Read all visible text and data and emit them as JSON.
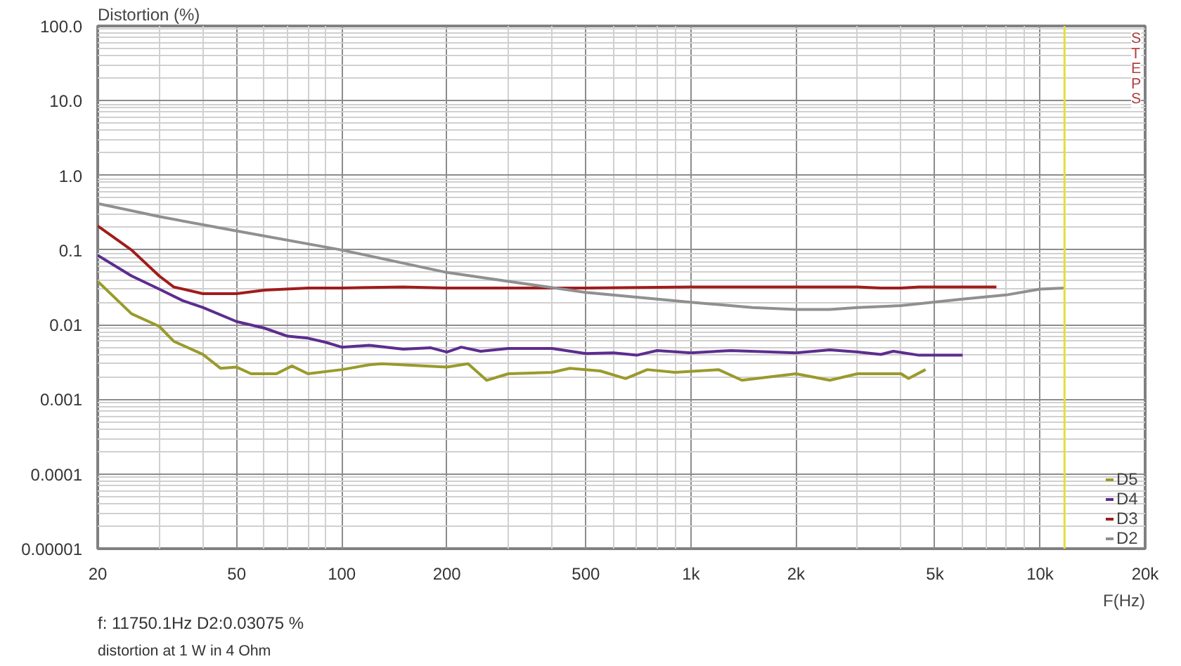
{
  "chart_data": {
    "type": "line",
    "ylabel": "Distortion (%)",
    "xlabel": "F(Hz)",
    "log": "xy",
    "grid": true,
    "legend": "bottom right",
    "line_style": "solid",
    "marker": "none",
    "xlim": [
      20,
      20000
    ],
    "ylim": [
      1e-05,
      100
    ],
    "xticks": [
      20,
      50,
      100,
      200,
      500,
      {
        "value": 1000,
        "label": "1k"
      },
      {
        "value": 2000,
        "label": "2k"
      },
      {
        "value": 5000,
        "label": "5k"
      },
      {
        "value": 10000,
        "label": "10k"
      },
      {
        "value": 20000,
        "label": "20k"
      }
    ],
    "yticks": [
      {
        "value": 1e-05,
        "label": "0.00001"
      },
      {
        "value": 0.0001,
        "label": "0.0001"
      },
      {
        "value": 0.001,
        "label": "0.001"
      },
      {
        "value": 0.01,
        "label": "0.01"
      },
      {
        "value": 0.1,
        "label": "0.1"
      },
      {
        "value": 1,
        "label": "1.0"
      },
      {
        "value": 10,
        "label": "10.0"
      },
      {
        "value": 100,
        "label": "100.0"
      }
    ],
    "ref_lines": [
      {
        "axis": "x",
        "value": 11750.1,
        "label": null,
        "color": "#e6dc3c"
      }
    ],
    "annotations": [
      "STEPS",
      "f: 11750.1Hz    D2:0.03075   %",
      "distortion at 1 W in 4 Ohm"
    ],
    "series": [
      {
        "name": "D5",
        "color": "#9a9a2c",
        "x": [
          20,
          25,
          30,
          33,
          40,
          45,
          50,
          55,
          65,
          72,
          80,
          100,
          120,
          130,
          200,
          230,
          260,
          300,
          400,
          450,
          550,
          650,
          750,
          900,
          1200,
          1400,
          2000,
          2500,
          3000,
          4000,
          4200,
          4700
        ],
        "values": [
          0.038,
          0.014,
          0.0095,
          0.006,
          0.004,
          0.0026,
          0.0027,
          0.0022,
          0.0022,
          0.0028,
          0.0022,
          0.0025,
          0.0029,
          0.003,
          0.0027,
          0.003,
          0.0018,
          0.0022,
          0.0023,
          0.0026,
          0.0024,
          0.0019,
          0.0025,
          0.0023,
          0.0025,
          0.0018,
          0.0022,
          0.0018,
          0.0022,
          0.0022,
          0.0019,
          0.0025
        ]
      },
      {
        "name": "D4",
        "color": "#5c2d8e",
        "x": [
          20,
          25,
          30,
          35,
          40,
          50,
          60,
          70,
          80,
          90,
          100,
          120,
          150,
          180,
          200,
          220,
          250,
          300,
          400,
          500,
          600,
          700,
          800,
          1000,
          1300,
          2000,
          2500,
          3000,
          3500,
          3800,
          4500,
          6000
        ],
        "values": [
          0.085,
          0.045,
          0.03,
          0.021,
          0.017,
          0.011,
          0.009,
          0.007,
          0.0066,
          0.0058,
          0.005,
          0.0053,
          0.0047,
          0.0049,
          0.0043,
          0.005,
          0.0044,
          0.0048,
          0.0048,
          0.0041,
          0.0042,
          0.0039,
          0.0045,
          0.0042,
          0.0045,
          0.0042,
          0.0046,
          0.0043,
          0.004,
          0.0044,
          0.0039,
          0.0039
        ]
      },
      {
        "name": "D3",
        "color": "#a01c1c",
        "x": [
          20,
          25,
          30,
          33,
          40,
          50,
          60,
          80,
          100,
          150,
          200,
          500,
          1000,
          3000,
          3500,
          4000,
          4500,
          7500
        ],
        "values": [
          0.21,
          0.1,
          0.045,
          0.032,
          0.026,
          0.026,
          0.029,
          0.031,
          0.031,
          0.032,
          0.031,
          0.031,
          0.032,
          0.032,
          0.031,
          0.031,
          0.032,
          0.032
        ]
      },
      {
        "name": "D2",
        "color": "#909090",
        "x": [
          20,
          30,
          50,
          100,
          200,
          300,
          500,
          1000,
          1500,
          2000,
          2500,
          3000,
          4000,
          6000,
          8000,
          10000,
          11750
        ],
        "values": [
          0.42,
          0.28,
          0.18,
          0.1,
          0.05,
          0.038,
          0.027,
          0.02,
          0.017,
          0.016,
          0.016,
          0.017,
          0.018,
          0.022,
          0.025,
          0.03,
          0.031
        ]
      }
    ]
  }
}
